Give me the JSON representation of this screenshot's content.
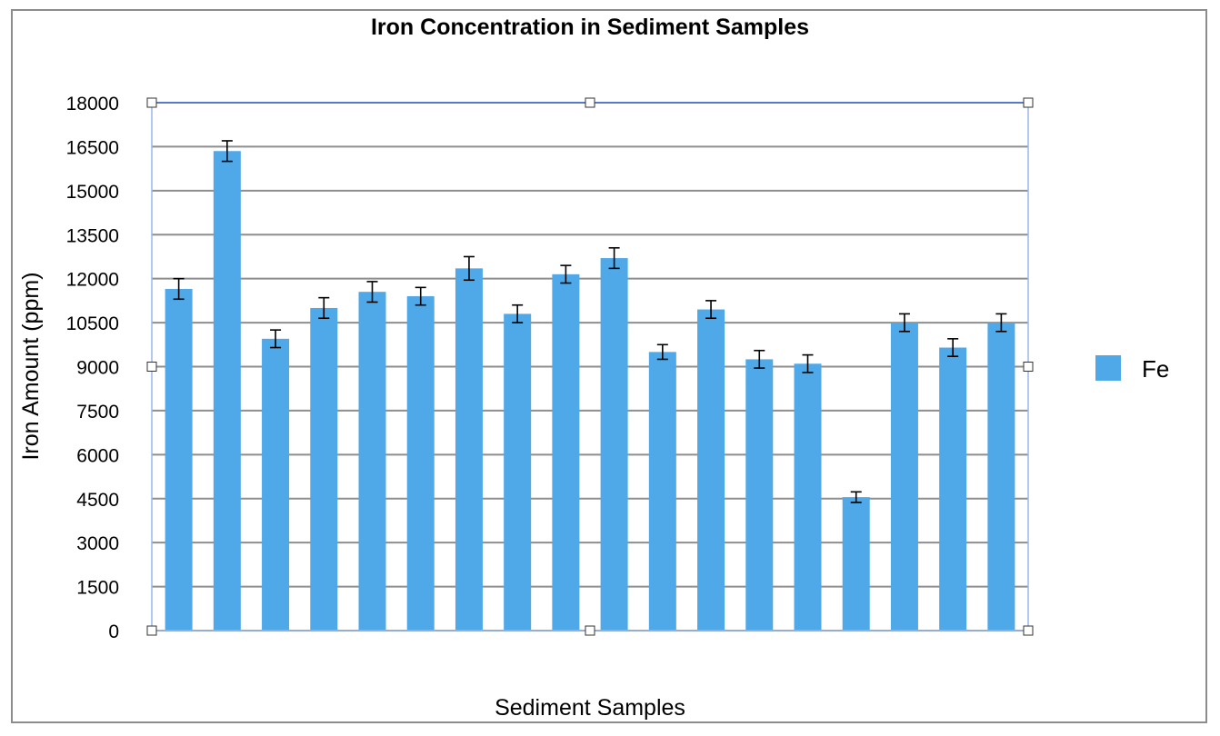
{
  "chart_data": {
    "type": "bar",
    "title": "Iron Concentration in Sediment Samples",
    "xlabel": "Sediment Samples",
    "ylabel": "Iron Amount (ppm)",
    "ylim": [
      0,
      18000
    ],
    "yticks": [
      "0",
      "1500",
      "3000",
      "4500",
      "6000",
      "7500",
      "9000",
      "10500",
      "12000",
      "13500",
      "15000",
      "16500",
      "18000"
    ],
    "grid": true,
    "legend_position": "right",
    "series": [
      {
        "name": "Fe",
        "color": "#4fa8e8",
        "values": [
          11650,
          16350,
          9950,
          11000,
          11550,
          11400,
          12350,
          10800,
          12150,
          12700,
          9500,
          10950,
          9250,
          9100,
          4550,
          10500,
          9650,
          10500
        ],
        "errors": [
          350,
          350,
          300,
          350,
          350,
          300,
          400,
          300,
          300,
          350,
          250,
          300,
          300,
          300,
          180,
          300,
          300,
          300
        ]
      }
    ]
  }
}
